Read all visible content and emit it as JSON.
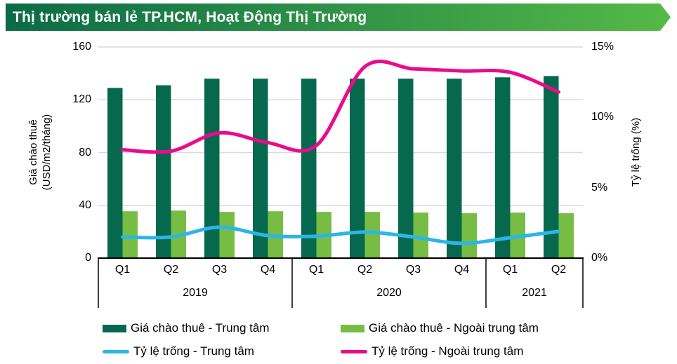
{
  "title_banner": {
    "text": "Thị trường bán lẻ TP.HCM, Hoạt Động Thị Trường"
  },
  "colors": {
    "banner_gradient_start": "#0A6B47",
    "banner_gradient_end": "#55B947",
    "banner_text": "#FFFFFF",
    "gridline": "#DADADA",
    "axis_lines": "#000000"
  },
  "chart_data": {
    "type": "combo-bar-line",
    "title": "Thị trường bán lẻ TP.HCM, Hoạt Động Thị Trường",
    "categories": [
      "Q1 2019",
      "Q2 2019",
      "Q3 2019",
      "Q4 2019",
      "Q1 2020",
      "Q2 2020",
      "Q3 2020",
      "Q4 2020",
      "Q1 2021",
      "Q2 2021"
    ],
    "x_axis": {
      "year_groups": [
        {
          "label": "2019",
          "quarters": [
            "Q1",
            "Q2",
            "Q3",
            "Q4"
          ]
        },
        {
          "label": "2020",
          "quarters": [
            "Q1",
            "Q2",
            "Q3",
            "Q4"
          ]
        },
        {
          "label": "2021",
          "quarters": [
            "Q1",
            "Q2"
          ]
        }
      ]
    },
    "left_axis": {
      "title_line1": "Giá chào thuê",
      "title_line2": "(USD/m2/tháng)",
      "tick_values": [
        0,
        40,
        80,
        120,
        160
      ],
      "tick_labels": [
        "0",
        "40",
        "80",
        "120",
        "160"
      ],
      "min": 0,
      "max": 160
    },
    "right_axis": {
      "title": "Tỷ lệ trống (%)",
      "tick_values": [
        0,
        5,
        10,
        15
      ],
      "tick_labels": [
        "0%",
        "5%",
        "10%",
        "15%"
      ],
      "min": 0,
      "max": 15
    },
    "bar_series": [
      {
        "name": "Giá chào thuê - Trung tâm",
        "axis": "left",
        "color": "#06694E",
        "values": [
          129,
          131,
          136,
          136,
          136,
          136,
          136,
          136,
          137,
          138
        ]
      },
      {
        "name": "Giá chào thuê - Ngoài trung tâm",
        "axis": "left",
        "color": "#77BD44",
        "values": [
          35.5,
          36,
          35,
          35.5,
          35,
          35,
          34.5,
          34,
          34.5,
          34
        ]
      }
    ],
    "line_series": [
      {
        "name": "Tỷ lệ trống - Trung tâm",
        "axis": "right",
        "color": "#2BB6E8",
        "values": [
          1.5,
          1.5,
          2.2,
          1.6,
          1.55,
          1.85,
          1.5,
          1.05,
          1.45,
          1.9
        ]
      },
      {
        "name": "Tỷ lệ trống - Ngoài trung tâm",
        "axis": "right",
        "color": "#EA0B8C",
        "values": [
          7.7,
          7.6,
          8.9,
          8.2,
          8.0,
          13.6,
          13.45,
          13.3,
          13.2,
          11.8
        ]
      }
    ],
    "legend_position": "bottom",
    "grid": "horizontal-only"
  }
}
